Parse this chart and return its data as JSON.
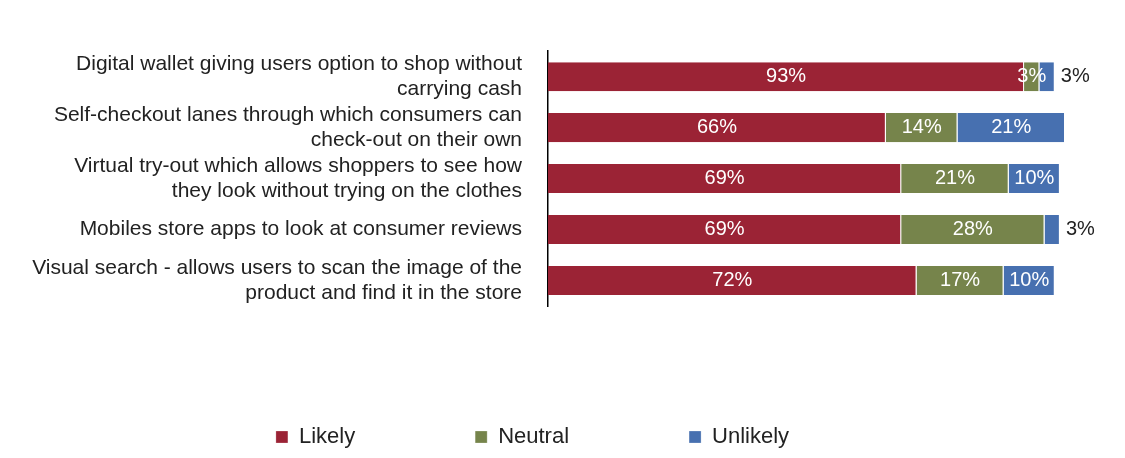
{
  "chart_data": {
    "type": "bar",
    "orientation": "horizontal",
    "stacked": true,
    "categories": [
      "Digital wallet giving users option to shop without carrying cash",
      "Self-checkout lanes through which consumers can check-out on their own",
      "Virtual try-out which allows shoppers to see how they look without trying on the clothes",
      "Mobiles store apps to look at consumer reviews",
      "Visual search - allows users to scan the image of the product and find it in the store"
    ],
    "series": [
      {
        "name": "Likely",
        "color": "#9b2335",
        "values": [
          93,
          66,
          69,
          69,
          72
        ],
        "value_labels": [
          "93%",
          "66%",
          "69%",
          "69%",
          "72%"
        ]
      },
      {
        "name": "Neutral",
        "color": "#76844b",
        "values": [
          3,
          14,
          21,
          28,
          17
        ],
        "value_labels": [
          "3%",
          "14%",
          "21%",
          "28%",
          "17%"
        ]
      },
      {
        "name": "Unlikely",
        "color": "#4770b0",
        "values": [
          3,
          21,
          10,
          3,
          10
        ],
        "value_labels": [
          "3%",
          "21%",
          "10%",
          "3%",
          "10%"
        ]
      }
    ],
    "xlim": [
      0,
      101
    ],
    "legend": "bottom",
    "tick_labels": "y"
  }
}
